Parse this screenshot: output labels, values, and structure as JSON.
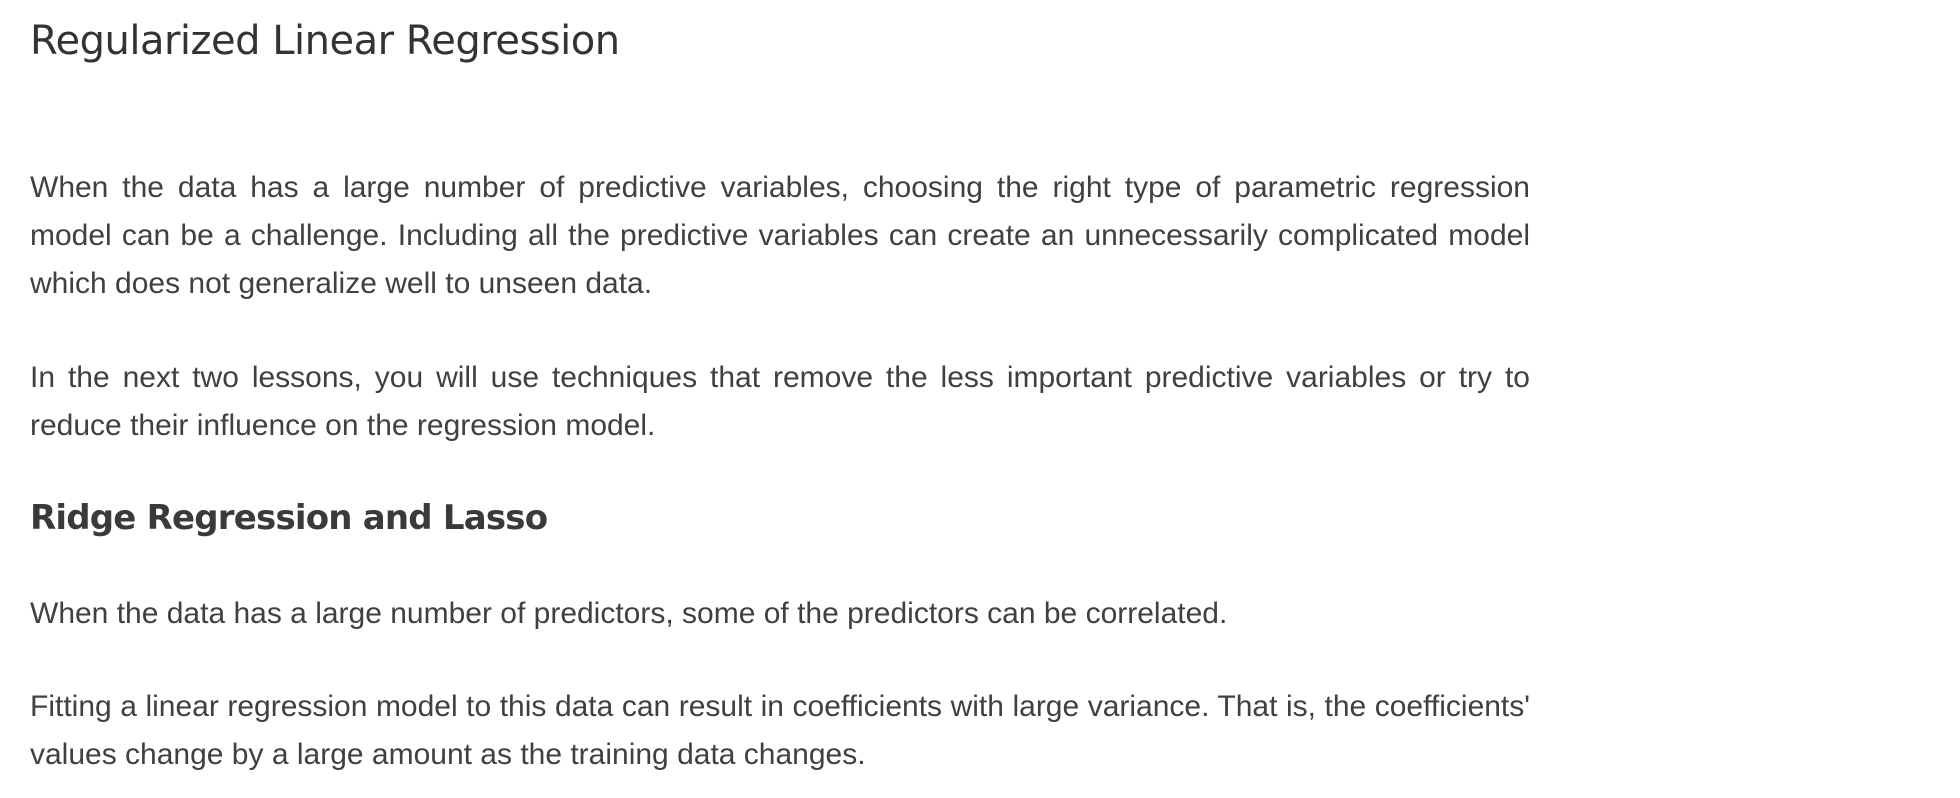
{
  "article": {
    "title": "Regularized Linear Regression",
    "paragraphs": [
      "When the data has a large number of predictive variables, choosing the right type of parametric regression model can be a challenge. Including all the predictive variables can create an unnecessarily complicated model which does not generalize well to unseen data.",
      "In the next two lessons, you will use techniques that remove the less important predictive variables or try to reduce their influence on the regression model."
    ],
    "section": {
      "heading": "Ridge Regression and Lasso",
      "paragraphs": [
        "When the data has a large number of predictors, some of the predictors can be correlated.",
        "Fitting a linear regression model to this data can result in coefficients with large variance. That is, the coefficients' values change by a large amount as the training data changes."
      ]
    }
  }
}
